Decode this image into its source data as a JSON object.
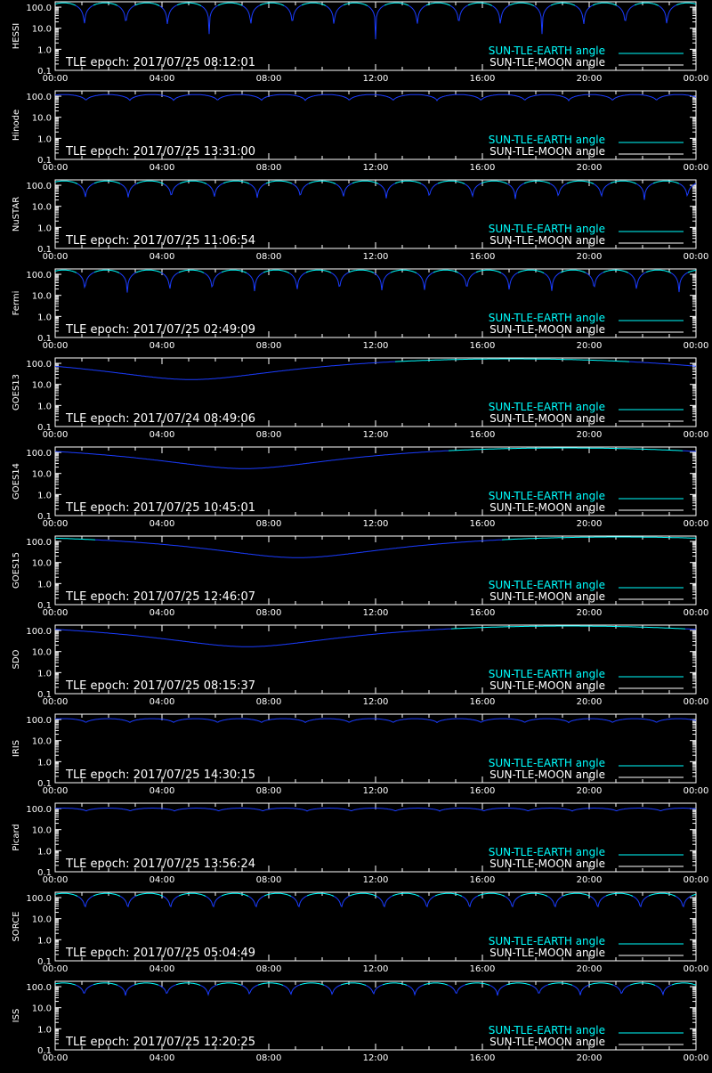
{
  "colors": {
    "background": "#000000",
    "axes": "#ffffff",
    "earth_angle": "#00ffff",
    "earth_angle_dark": "#1a3cff",
    "moon_angle": "#ffffff"
  },
  "legend": {
    "earth": "SUN-TLE-EARTH angle",
    "moon": "SUN-TLE-MOON angle",
    "placement": "bottom-right"
  },
  "chart_data": [
    {
      "type": "line",
      "satellite": "HESSI",
      "epoch_label": "TLE epoch: 2017/07/25 08:12:01",
      "yscale": "log",
      "ylim": [
        0.1,
        180
      ],
      "yticks": [
        "100.0",
        "10.0",
        "1.0",
        "0.1"
      ],
      "xticks": [
        "00:00",
        "04:00",
        "08:00",
        "12:00",
        "16:00",
        "20:00",
        "00:00"
      ],
      "xlim_hours": [
        0,
        24
      ],
      "orbits": 15.4,
      "earth_angle_min": 3,
      "earth_angle_max": 160,
      "earth_min_hour": null
    },
    {
      "type": "line",
      "satellite": "Hinode",
      "epoch_label": "TLE epoch: 2017/07/25 13:31:00",
      "yscale": "log",
      "ylim": [
        0.1,
        180
      ],
      "yticks": [
        "100.0",
        "10.0",
        "1.0",
        "0.1"
      ],
      "xticks": [
        "00:00",
        "04:00",
        "08:00",
        "12:00",
        "16:00",
        "20:00",
        "00:00"
      ],
      "xlim_hours": [
        0,
        24
      ],
      "orbits": 14.6,
      "earth_angle_min": 60,
      "earth_angle_max": 120,
      "earth_min_hour": null
    },
    {
      "type": "line",
      "satellite": "NuSTAR",
      "epoch_label": "TLE epoch: 2017/07/25 11:06:54",
      "yscale": "log",
      "ylim": [
        0.1,
        180
      ],
      "yticks": [
        "100.0",
        "10.0",
        "1.0",
        "0.1"
      ],
      "xticks": [
        "00:00",
        "04:00",
        "08:00",
        "12:00",
        "16:00",
        "20:00",
        "00:00"
      ],
      "xlim_hours": [
        0,
        24
      ],
      "orbits": 14.9,
      "earth_angle_min": 18,
      "earth_angle_max": 160,
      "earth_min_hour": null
    },
    {
      "type": "line",
      "satellite": "Fermi",
      "epoch_label": "TLE epoch: 2017/07/25 02:49:09",
      "yscale": "log",
      "ylim": [
        0.1,
        180
      ],
      "yticks": [
        "100.0",
        "10.0",
        "1.0",
        "0.1"
      ],
      "xticks": [
        "00:00",
        "04:00",
        "08:00",
        "12:00",
        "16:00",
        "20:00",
        "00:00"
      ],
      "xlim_hours": [
        0,
        24
      ],
      "orbits": 15.1,
      "earth_angle_min": 8,
      "earth_angle_max": 160,
      "earth_min_hour": null
    },
    {
      "type": "line",
      "satellite": "GOES13",
      "epoch_label": "TLE epoch: 2017/07/24 08:49:06",
      "yscale": "log",
      "ylim": [
        0.1,
        180
      ],
      "yticks": [
        "100.0",
        "10.0",
        "1.0",
        "0.1"
      ],
      "xticks": [
        "00:00",
        "04:00",
        "08:00",
        "12:00",
        "16:00",
        "20:00",
        "00:00"
      ],
      "xlim_hours": [
        0,
        24
      ],
      "orbits": 0,
      "earth_angle_min": 17,
      "earth_angle_max": 163,
      "earth_min_hour": 5.1
    },
    {
      "type": "line",
      "satellite": "GOES14",
      "epoch_label": "TLE epoch: 2017/07/25 10:45:01",
      "yscale": "log",
      "ylim": [
        0.1,
        180
      ],
      "yticks": [
        "100.0",
        "10.0",
        "1.0",
        "0.1"
      ],
      "xticks": [
        "00:00",
        "04:00",
        "08:00",
        "12:00",
        "16:00",
        "20:00",
        "00:00"
      ],
      "xlim_hours": [
        0,
        24
      ],
      "orbits": 0,
      "earth_angle_min": 17,
      "earth_angle_max": 163,
      "earth_min_hour": 7.1
    },
    {
      "type": "line",
      "satellite": "GOES15",
      "epoch_label": "TLE epoch: 2017/07/25 12:46:07",
      "yscale": "log",
      "ylim": [
        0.1,
        180
      ],
      "yticks": [
        "100.0",
        "10.0",
        "1.0",
        "0.1"
      ],
      "xticks": [
        "00:00",
        "04:00",
        "08:00",
        "12:00",
        "16:00",
        "20:00",
        "00:00"
      ],
      "xlim_hours": [
        0,
        24
      ],
      "orbits": 0,
      "earth_angle_min": 17,
      "earth_angle_max": 163,
      "earth_min_hour": 9.1
    },
    {
      "type": "line",
      "satellite": "SDO",
      "epoch_label": "TLE epoch: 2017/07/25 08:15:37",
      "yscale": "log",
      "ylim": [
        0.1,
        180
      ],
      "yticks": [
        "100.0",
        "10.0",
        "1.0",
        "0.1"
      ],
      "xticks": [
        "00:00",
        "04:00",
        "08:00",
        "12:00",
        "16:00",
        "20:00",
        "00:00"
      ],
      "xlim_hours": [
        0,
        24
      ],
      "orbits": 0,
      "earth_angle_min": 17,
      "earth_angle_max": 163,
      "earth_min_hour": 7.2
    },
    {
      "type": "line",
      "satellite": "IRIS",
      "epoch_label": "TLE epoch: 2017/07/25 14:30:15",
      "yscale": "log",
      "ylim": [
        0.1,
        180
      ],
      "yticks": [
        "100.0",
        "10.0",
        "1.0",
        "0.1"
      ],
      "xticks": [
        "00:00",
        "04:00",
        "08:00",
        "12:00",
        "16:00",
        "20:00",
        "00:00"
      ],
      "xlim_hours": [
        0,
        24
      ],
      "orbits": 14.6,
      "earth_angle_min": 70,
      "earth_angle_max": 110,
      "earth_min_hour": null
    },
    {
      "type": "line",
      "satellite": "Picard",
      "epoch_label": "TLE epoch: 2017/07/25 13:56:24",
      "yscale": "log",
      "ylim": [
        0.1,
        180
      ],
      "yticks": [
        "100.0",
        "10.0",
        "1.0",
        "0.1"
      ],
      "xticks": [
        "00:00",
        "04:00",
        "08:00",
        "12:00",
        "16:00",
        "20:00",
        "00:00"
      ],
      "xlim_hours": [
        0,
        24
      ],
      "orbits": 14.5,
      "earth_angle_min": 75,
      "earth_angle_max": 105,
      "earth_min_hour": null
    },
    {
      "type": "line",
      "satellite": "SORCE",
      "epoch_label": "TLE epoch: 2017/07/25 05:04:49",
      "yscale": "log",
      "ylim": [
        0.1,
        180
      ],
      "yticks": [
        "100.0",
        "10.0",
        "1.0",
        "0.1"
      ],
      "xticks": [
        "00:00",
        "04:00",
        "08:00",
        "12:00",
        "16:00",
        "20:00",
        "00:00"
      ],
      "xlim_hours": [
        0,
        24
      ],
      "orbits": 15.0,
      "earth_angle_min": 22,
      "earth_angle_max": 160,
      "earth_min_hour": null
    },
    {
      "type": "line",
      "satellite": "ISS",
      "epoch_label": "TLE epoch: 2017/07/25 12:20:25",
      "yscale": "log",
      "ylim": [
        0.1,
        180
      ],
      "yticks": [
        "100.0",
        "10.0",
        "1.0",
        "0.1"
      ],
      "xticks": [
        "00:00",
        "04:00",
        "08:00",
        "12:00",
        "16:00",
        "20:00",
        "00:00"
      ],
      "xlim_hours": [
        0,
        24
      ],
      "orbits": 15.5,
      "earth_angle_min": 35,
      "earth_angle_max": 150,
      "earth_min_hour": null
    }
  ]
}
